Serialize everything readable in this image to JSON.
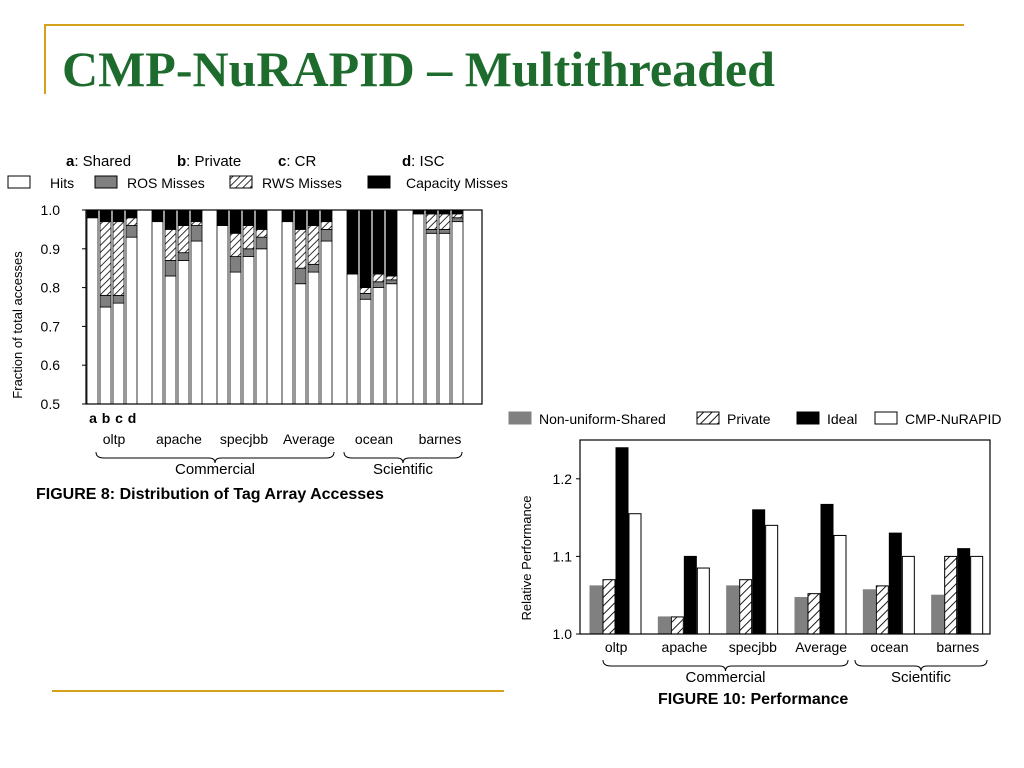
{
  "slide": {
    "title": "CMP-NuRAPID – Multithreaded"
  },
  "colors": {
    "title": "#1e6b2e",
    "rules": "#d3a11b",
    "gray": "#808080",
    "black": "#000000"
  },
  "chart_data": [
    {
      "type": "bar",
      "stacked": true,
      "caption": "FIGURE 8: Distribution of Tag Array Accesses",
      "ylabel": "Fraction of total accesses",
      "ylim": [
        0.5,
        1.0
      ],
      "yticks": [
        "1.0",
        "0.9",
        "0.8",
        "0.7",
        "0.6",
        "0.5"
      ],
      "configs": [
        {
          "key": "a",
          "label": "Shared"
        },
        {
          "key": "b",
          "label": "Private"
        },
        {
          "key": "c",
          "label": "CR"
        },
        {
          "key": "d",
          "label": "ISC"
        }
      ],
      "config_keys_under_axis": [
        "a",
        "b",
        "c",
        "d"
      ],
      "legend": [
        "Hits",
        "ROS Misses",
        "RWS Misses",
        "Capacity Misses"
      ],
      "categories": [
        "oltp",
        "apache",
        "specjbb",
        "Average",
        "ocean",
        "barnes"
      ],
      "groups": [
        {
          "label": "Commercial",
          "categories": [
            "oltp",
            "apache",
            "specjbb",
            "Average"
          ]
        },
        {
          "label": "Scientific",
          "categories": [
            "ocean",
            "barnes"
          ]
        }
      ],
      "bars": {
        "oltp": [
          [
            0.98,
            0.98,
            0.98,
            1.0
          ],
          [
            0.75,
            0.78,
            0.97,
            1.0
          ],
          [
            0.76,
            0.78,
            0.97,
            1.0
          ],
          [
            0.93,
            0.96,
            0.98,
            1.0
          ]
        ],
        "apache": [
          [
            0.97,
            0.97,
            0.97,
            1.0
          ],
          [
            0.83,
            0.87,
            0.95,
            1.0
          ],
          [
            0.87,
            0.89,
            0.96,
            1.0
          ],
          [
            0.92,
            0.96,
            0.97,
            1.0
          ]
        ],
        "specjbb": [
          [
            0.96,
            0.96,
            0.96,
            1.0
          ],
          [
            0.84,
            0.88,
            0.94,
            1.0
          ],
          [
            0.88,
            0.9,
            0.96,
            1.0
          ],
          [
            0.9,
            0.93,
            0.95,
            1.0
          ]
        ],
        "Average": [
          [
            0.97,
            0.97,
            0.97,
            1.0
          ],
          [
            0.81,
            0.85,
            0.95,
            1.0
          ],
          [
            0.84,
            0.86,
            0.96,
            1.0
          ],
          [
            0.92,
            0.95,
            0.97,
            1.0
          ]
        ],
        "ocean": [
          [
            0.835,
            0.835,
            0.835,
            1.0
          ],
          [
            0.77,
            0.785,
            0.8,
            1.0
          ],
          [
            0.8,
            0.815,
            0.835,
            1.0
          ],
          [
            0.81,
            0.82,
            0.83,
            1.0
          ]
        ],
        "barnes": [
          [
            0.99,
            0.99,
            0.99,
            1.0
          ],
          [
            0.94,
            0.95,
            0.99,
            1.0
          ],
          [
            0.94,
            0.95,
            0.99,
            1.0
          ],
          [
            0.97,
            0.98,
            0.99,
            1.0
          ]
        ]
      }
    },
    {
      "type": "bar",
      "caption": "FIGURE 10: Performance",
      "ylabel": "Relative Performance",
      "ylim": [
        1.0,
        1.25
      ],
      "yticks": [
        "1.2",
        "1.1",
        "1.0"
      ],
      "categories": [
        "oltp",
        "apache",
        "specjbb",
        "Average",
        "ocean",
        "barnes"
      ],
      "groups": [
        {
          "label": "Commercial",
          "categories": [
            "oltp",
            "apache",
            "specjbb",
            "Average"
          ]
        },
        {
          "label": "Scientific",
          "categories": [
            "ocean",
            "barnes"
          ]
        }
      ],
      "series": [
        {
          "name": "Non-uniform-Shared",
          "values": [
            1.062,
            1.022,
            1.062,
            1.047,
            1.057,
            1.05
          ]
        },
        {
          "name": "Private",
          "values": [
            1.07,
            1.022,
            1.07,
            1.052,
            1.062,
            1.1
          ]
        },
        {
          "name": "Ideal",
          "values": [
            1.24,
            1.1,
            1.16,
            1.167,
            1.13,
            1.11
          ]
        },
        {
          "name": "CMP-NuRAPID",
          "values": [
            1.155,
            1.085,
            1.14,
            1.127,
            1.1,
            1.1
          ]
        }
      ]
    }
  ]
}
